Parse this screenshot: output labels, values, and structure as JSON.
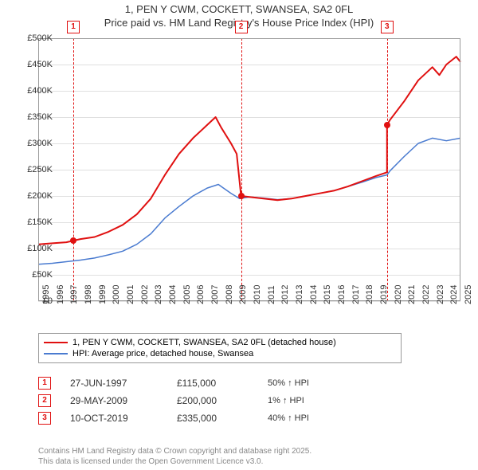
{
  "title_line1": "1, PEN Y CWM, COCKETT, SWANSEA, SA2 0FL",
  "title_line2": "Price paid vs. HM Land Registry's House Price Index (HPI)",
  "chart": {
    "type": "line",
    "background_color": "#ffffff",
    "grid_color": "#e0e0e0",
    "axis_color": "#999999",
    "x_years": [
      1995,
      1996,
      1997,
      1998,
      1999,
      2000,
      2001,
      2002,
      2003,
      2004,
      2005,
      2006,
      2007,
      2008,
      2009,
      2010,
      2011,
      2012,
      2013,
      2014,
      2015,
      2016,
      2017,
      2018,
      2019,
      2020,
      2021,
      2022,
      2023,
      2024,
      2025
    ],
    "x_min": 1995,
    "x_max": 2025,
    "y_min": 0,
    "y_max": 500000,
    "y_ticks": [
      0,
      50000,
      100000,
      150000,
      200000,
      250000,
      300000,
      350000,
      400000,
      450000,
      500000
    ],
    "y_tick_labels": [
      "£0",
      "£50K",
      "£100K",
      "£150K",
      "£200K",
      "£250K",
      "£300K",
      "£350K",
      "£400K",
      "£450K",
      "£500K"
    ],
    "series_property": {
      "label": "1, PEN Y CWM, COCKETT, SWANSEA, SA2 0FL (detached house)",
      "color": "#e01010",
      "line_width": 2,
      "points": [
        [
          1995,
          108000
        ],
        [
          1996,
          110000
        ],
        [
          1997,
          112000
        ],
        [
          1997.49,
          115000
        ],
        [
          1998,
          118000
        ],
        [
          1999,
          122000
        ],
        [
          2000,
          132000
        ],
        [
          2001,
          145000
        ],
        [
          2002,
          165000
        ],
        [
          2003,
          195000
        ],
        [
          2004,
          240000
        ],
        [
          2005,
          280000
        ],
        [
          2006,
          310000
        ],
        [
          2007,
          335000
        ],
        [
          2007.6,
          350000
        ],
        [
          2008,
          330000
        ],
        [
          2008.7,
          300000
        ],
        [
          2009.1,
          280000
        ],
        [
          2009.41,
          200000
        ],
        [
          2010,
          198000
        ],
        [
          2011,
          195000
        ],
        [
          2012,
          192000
        ],
        [
          2013,
          195000
        ],
        [
          2014,
          200000
        ],
        [
          2015,
          205000
        ],
        [
          2016,
          210000
        ],
        [
          2017,
          218000
        ],
        [
          2018,
          228000
        ],
        [
          2019,
          238000
        ],
        [
          2019.78,
          245000
        ],
        [
          2019.78,
          335000
        ],
        [
          2020,
          345000
        ],
        [
          2021,
          380000
        ],
        [
          2022,
          420000
        ],
        [
          2023,
          445000
        ],
        [
          2023.5,
          430000
        ],
        [
          2024,
          450000
        ],
        [
          2024.7,
          465000
        ],
        [
          2025,
          455000
        ]
      ]
    },
    "series_hpi": {
      "label": "HPI: Average price, detached house, Swansea",
      "color": "#4a7bd0",
      "line_width": 1.5,
      "points": [
        [
          1995,
          70000
        ],
        [
          1996,
          72000
        ],
        [
          1997,
          75000
        ],
        [
          1998,
          78000
        ],
        [
          1999,
          82000
        ],
        [
          2000,
          88000
        ],
        [
          2001,
          95000
        ],
        [
          2002,
          108000
        ],
        [
          2003,
          128000
        ],
        [
          2004,
          158000
        ],
        [
          2005,
          180000
        ],
        [
          2006,
          200000
        ],
        [
          2007,
          215000
        ],
        [
          2007.8,
          222000
        ],
        [
          2008,
          218000
        ],
        [
          2008.7,
          205000
        ],
        [
          2009.3,
          195000
        ],
        [
          2010,
          198000
        ],
        [
          2011,
          196000
        ],
        [
          2012,
          193000
        ],
        [
          2013,
          195000
        ],
        [
          2014,
          200000
        ],
        [
          2015,
          205000
        ],
        [
          2016,
          210000
        ],
        [
          2017,
          218000
        ],
        [
          2018,
          226000
        ],
        [
          2019,
          235000
        ],
        [
          2019.78,
          240000
        ],
        [
          2020,
          248000
        ],
        [
          2021,
          275000
        ],
        [
          2022,
          300000
        ],
        [
          2023,
          310000
        ],
        [
          2024,
          305000
        ],
        [
          2025,
          310000
        ]
      ]
    },
    "sale_markers": [
      {
        "n": "1",
        "year": 1997.49,
        "price": 115000,
        "color": "#e01010"
      },
      {
        "n": "2",
        "year": 2009.41,
        "price": 200000,
        "color": "#e01010"
      },
      {
        "n": "3",
        "year": 2019.78,
        "price": 335000,
        "color": "#e01010"
      }
    ],
    "marker_top_offset": -22
  },
  "legend": {
    "items": [
      {
        "color": "#e01010",
        "text": "1, PEN Y CWM, COCKETT, SWANSEA, SA2 0FL (detached house)"
      },
      {
        "color": "#4a7bd0",
        "text": "HPI: Average price, detached house, Swansea"
      }
    ]
  },
  "sales_table": {
    "rows": [
      {
        "n": "1",
        "color": "#e01010",
        "date": "27-JUN-1997",
        "price": "£115,000",
        "delta": "50% ↑ HPI"
      },
      {
        "n": "2",
        "color": "#e01010",
        "date": "29-MAY-2009",
        "price": "£200,000",
        "delta": "1% ↑ HPI"
      },
      {
        "n": "3",
        "color": "#e01010",
        "date": "10-OCT-2019",
        "price": "£335,000",
        "delta": "40% ↑ HPI"
      }
    ]
  },
  "footer_line1": "Contains HM Land Registry data © Crown copyright and database right 2025.",
  "footer_line2": "This data is licensed under the Open Government Licence v3.0.",
  "label_fontsize": 11,
  "title_fontsize": 13
}
